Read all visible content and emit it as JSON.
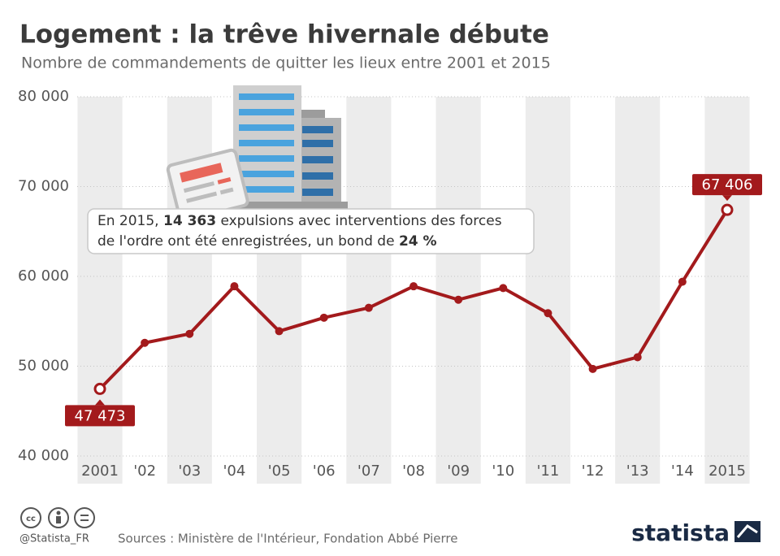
{
  "chart_data": {
    "type": "line",
    "title": "Logement : la trêve hivernale débute",
    "subtitle": "Nombre de commandements de quitter les lieux entre 2001 et 2015",
    "categories": [
      "2001",
      "'02",
      "'03",
      "'04",
      "'05",
      "'06",
      "'07",
      "'08",
      "'09",
      "'10",
      "'11",
      "'12",
      "'13",
      "'14",
      "2015"
    ],
    "series": [
      {
        "name": "Commandements de quitter les lieux",
        "color": "#a31a1c",
        "values": [
          47473,
          52600,
          53600,
          58900,
          53900,
          55400,
          56500,
          58900,
          57400,
          58700,
          55900,
          49700,
          51000,
          59400,
          67406
        ],
        "value_labels": [
          "47 473",
          null,
          null,
          null,
          null,
          null,
          null,
          null,
          null,
          null,
          null,
          null,
          null,
          null,
          "67 406"
        ]
      }
    ],
    "ylim": [
      40000,
      80000
    ],
    "yticks": [
      {
        "value": 40000,
        "label": "40 000"
      },
      {
        "value": 50000,
        "label": "50 000"
      },
      {
        "value": 60000,
        "label": "60 000"
      },
      {
        "value": 70000,
        "label": "70 000"
      },
      {
        "value": 80000,
        "label": "80 000"
      }
    ],
    "grid": true,
    "annotation": {
      "lines": [
        [
          {
            "text": "En 2015, "
          },
          {
            "text": "14 363",
            "bold": true
          },
          {
            "text": " expulsions avec interventions des forces"
          }
        ],
        [
          {
            "text": "de l'ordre ont été enregistrées, un bond de "
          },
          {
            "text": "24 %",
            "bold": true
          }
        ]
      ]
    }
  },
  "footer": {
    "handle": "@Statista_FR",
    "sources": "Sources : Ministère de l'Intérieur, Fondation Abbé Pierre",
    "brand": "statista"
  }
}
